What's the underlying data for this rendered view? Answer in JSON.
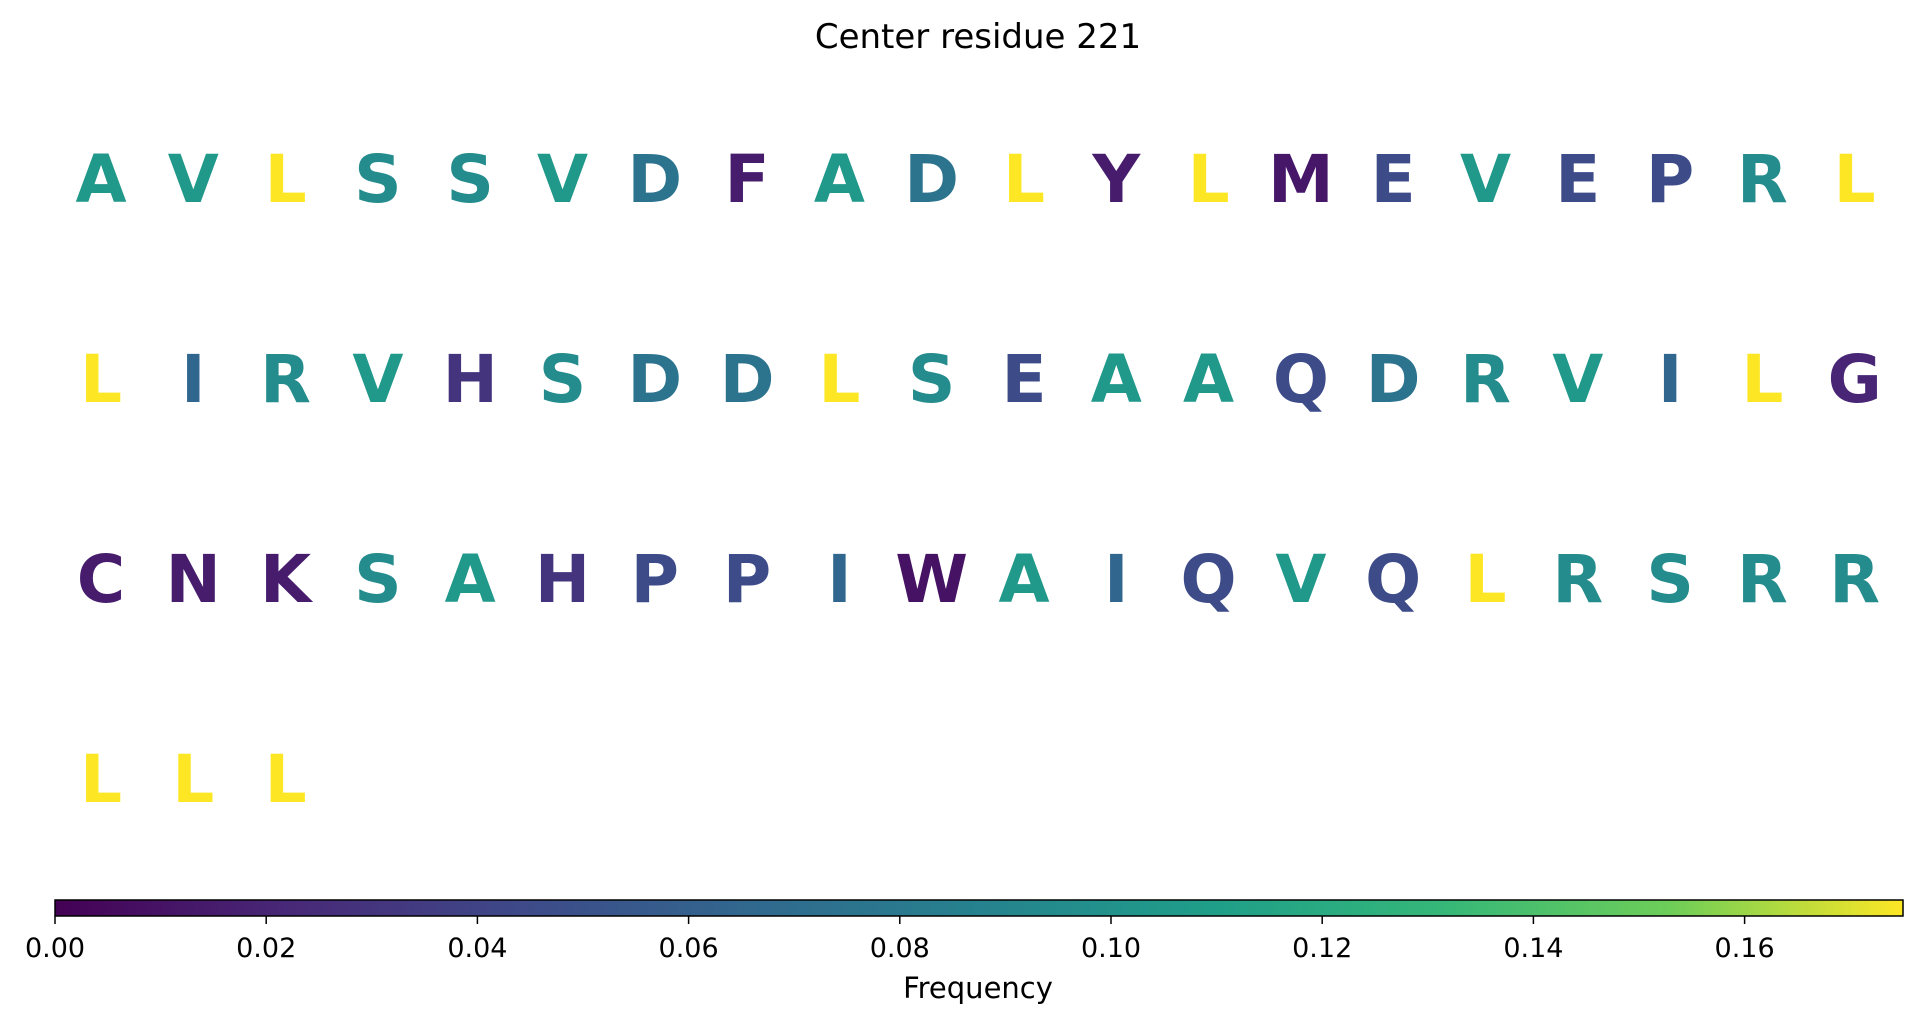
{
  "chart_data": {
    "type": "heatmap",
    "title": "Center residue 221",
    "colorbar": {
      "label": "Frequency",
      "colormap": "viridis",
      "range": [
        0.0,
        0.175
      ],
      "ticks": [
        "0.00",
        "0.02",
        "0.04",
        "0.06",
        "0.08",
        "0.10",
        "0.12",
        "0.14",
        "0.16"
      ],
      "tick_values": [
        0.0,
        0.02,
        0.04,
        0.06,
        0.08,
        0.1,
        0.12,
        0.14,
        0.16
      ],
      "orientation": "horizontal",
      "placement": "bottom"
    },
    "columns_per_row": 20,
    "residues": [
      {
        "letter": "A",
        "frequency": 0.105
      },
      {
        "letter": "V",
        "frequency": 0.105
      },
      {
        "letter": "L",
        "frequency": 0.175
      },
      {
        "letter": "S",
        "frequency": 0.095
      },
      {
        "letter": "S",
        "frequency": 0.095
      },
      {
        "letter": "V",
        "frequency": 0.105
      },
      {
        "letter": "D",
        "frequency": 0.075
      },
      {
        "letter": "F",
        "frequency": 0.015
      },
      {
        "letter": "A",
        "frequency": 0.105
      },
      {
        "letter": "D",
        "frequency": 0.075
      },
      {
        "letter": "L",
        "frequency": 0.175
      },
      {
        "letter": "Y",
        "frequency": 0.015
      },
      {
        "letter": "L",
        "frequency": 0.175
      },
      {
        "letter": "M",
        "frequency": 0.012
      },
      {
        "letter": "E",
        "frequency": 0.045
      },
      {
        "letter": "V",
        "frequency": 0.105
      },
      {
        "letter": "E",
        "frequency": 0.045
      },
      {
        "letter": "P",
        "frequency": 0.045
      },
      {
        "letter": "R",
        "frequency": 0.095
      },
      {
        "letter": "L",
        "frequency": 0.175
      },
      {
        "letter": "L",
        "frequency": 0.175
      },
      {
        "letter": "I",
        "frequency": 0.065
      },
      {
        "letter": "R",
        "frequency": 0.095
      },
      {
        "letter": "V",
        "frequency": 0.105
      },
      {
        "letter": "H",
        "frequency": 0.03
      },
      {
        "letter": "S",
        "frequency": 0.095
      },
      {
        "letter": "D",
        "frequency": 0.075
      },
      {
        "letter": "D",
        "frequency": 0.075
      },
      {
        "letter": "L",
        "frequency": 0.175
      },
      {
        "letter": "S",
        "frequency": 0.095
      },
      {
        "letter": "E",
        "frequency": 0.045
      },
      {
        "letter": "A",
        "frequency": 0.105
      },
      {
        "letter": "A",
        "frequency": 0.105
      },
      {
        "letter": "Q",
        "frequency": 0.045
      },
      {
        "letter": "D",
        "frequency": 0.075
      },
      {
        "letter": "R",
        "frequency": 0.095
      },
      {
        "letter": "V",
        "frequency": 0.105
      },
      {
        "letter": "I",
        "frequency": 0.065
      },
      {
        "letter": "L",
        "frequency": 0.175
      },
      {
        "letter": "G",
        "frequency": 0.02
      },
      {
        "letter": "C",
        "frequency": 0.015
      },
      {
        "letter": "N",
        "frequency": 0.015
      },
      {
        "letter": "K",
        "frequency": 0.015
      },
      {
        "letter": "S",
        "frequency": 0.095
      },
      {
        "letter": "A",
        "frequency": 0.105
      },
      {
        "letter": "H",
        "frequency": 0.03
      },
      {
        "letter": "P",
        "frequency": 0.045
      },
      {
        "letter": "P",
        "frequency": 0.045
      },
      {
        "letter": "I",
        "frequency": 0.065
      },
      {
        "letter": "W",
        "frequency": 0.01
      },
      {
        "letter": "A",
        "frequency": 0.105
      },
      {
        "letter": "I",
        "frequency": 0.065
      },
      {
        "letter": "Q",
        "frequency": 0.045
      },
      {
        "letter": "V",
        "frequency": 0.105
      },
      {
        "letter": "Q",
        "frequency": 0.045
      },
      {
        "letter": "L",
        "frequency": 0.175
      },
      {
        "letter": "R",
        "frequency": 0.095
      },
      {
        "letter": "S",
        "frequency": 0.095
      },
      {
        "letter": "R",
        "frequency": 0.095
      },
      {
        "letter": "R",
        "frequency": 0.095
      },
      {
        "letter": "L",
        "frequency": 0.175
      },
      {
        "letter": "L",
        "frequency": 0.175
      },
      {
        "letter": "L",
        "frequency": 0.175
      }
    ]
  }
}
